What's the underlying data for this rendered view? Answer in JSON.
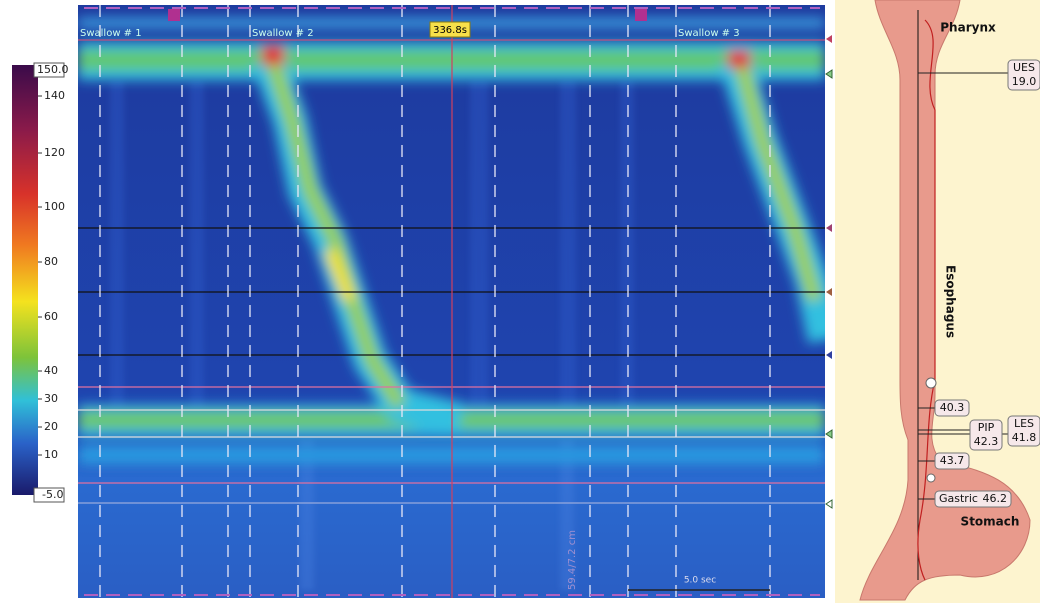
{
  "colorbar": {
    "max_label": "150.0",
    "ticks": [
      "140",
      "120",
      "100",
      "80",
      "60",
      "40",
      "30",
      "20",
      "10"
    ],
    "min_label": "-5.0"
  },
  "plot": {
    "time_marker": "336.8s",
    "swallows": [
      "Swallow # 1",
      "Swallow # 2",
      "Swallow # 3"
    ],
    "scale_bar": "5.0 sec",
    "depth_label": "59.4/7.2 cm"
  },
  "anatomy": {
    "labels": [
      "Pharynx",
      "Esophagus",
      "Stomach"
    ],
    "callouts": [
      {
        "name": "UES",
        "value": "19.0"
      },
      {
        "value": "40.3"
      },
      {
        "name": "PIP",
        "value": "42.3"
      },
      {
        "name": "LES",
        "value": "41.8"
      },
      {
        "value": "43.7"
      },
      {
        "name": "Gastric",
        "value": "46.2"
      }
    ]
  }
}
